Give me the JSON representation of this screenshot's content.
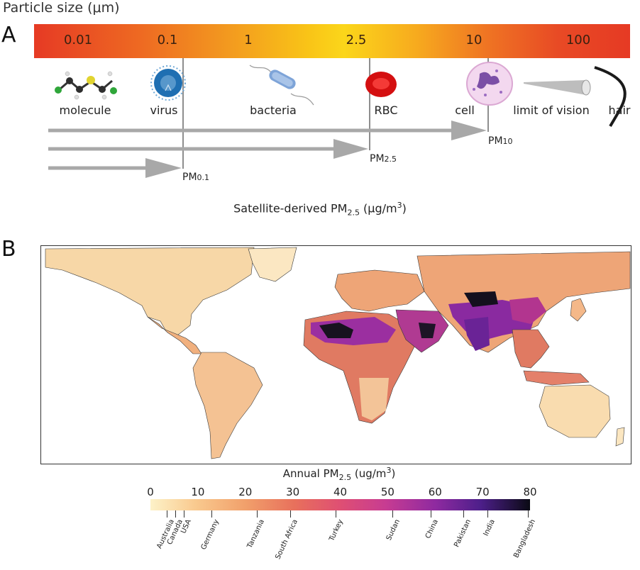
{
  "panel_a": {
    "letter": "A",
    "title": "Particle size (μm)",
    "scale_ticks": [
      "0.01",
      "0.1",
      "1",
      "2.5",
      "10",
      "100"
    ],
    "items": [
      "molecule",
      "virus",
      "bacteria",
      "RBC",
      "cell",
      "limit of vision",
      "hair"
    ],
    "pm_labels": [
      {
        "main": "PM",
        "sub": "10"
      },
      {
        "main": "PM",
        "sub": "2.5"
      },
      {
        "main": "PM",
        "sub": "0.1"
      }
    ]
  },
  "panel_b": {
    "letter": "B",
    "map_title": {
      "prefix": "Satellite-derived PM",
      "sub": "2.5",
      "unit_prefix": " (μg/m",
      "sup": "3",
      "unit_suffix": ")"
    },
    "colorbar": {
      "title": {
        "prefix": "Annual PM",
        "sub": "2.5",
        "unit_prefix": " (ug/m",
        "sup": "3",
        "unit_suffix": ")"
      },
      "ticks": [
        "0",
        "10",
        "20",
        "30",
        "40",
        "50",
        "60",
        "70",
        "80"
      ],
      "range": [
        0,
        80
      ],
      "countries": [
        {
          "name": "Australia",
          "value": 3.5
        },
        {
          "name": "Canada",
          "value": 5.3
        },
        {
          "name": "USA",
          "value": 7.0
        },
        {
          "name": "Germany",
          "value": 12.8
        },
        {
          "name": "Tanzania",
          "value": 22.5
        },
        {
          "name": "South Africa",
          "value": 29.5
        },
        {
          "name": "Turkey",
          "value": 39.0
        },
        {
          "name": "Sudan",
          "value": 51.0
        },
        {
          "name": "China",
          "value": 59.0
        },
        {
          "name": "Pakistan",
          "value": 66.0
        },
        {
          "name": "India",
          "value": 71.0
        },
        {
          "name": "Bangladesh",
          "value": 79.5
        }
      ]
    }
  },
  "colors": {
    "arrow": "#a8a8a8",
    "land_low": "#f6d3a3",
    "land_mid": "#ec9a6c",
    "land_high": "#b8378f",
    "land_max": "#14101e",
    "borders": "#3a3a3a"
  }
}
